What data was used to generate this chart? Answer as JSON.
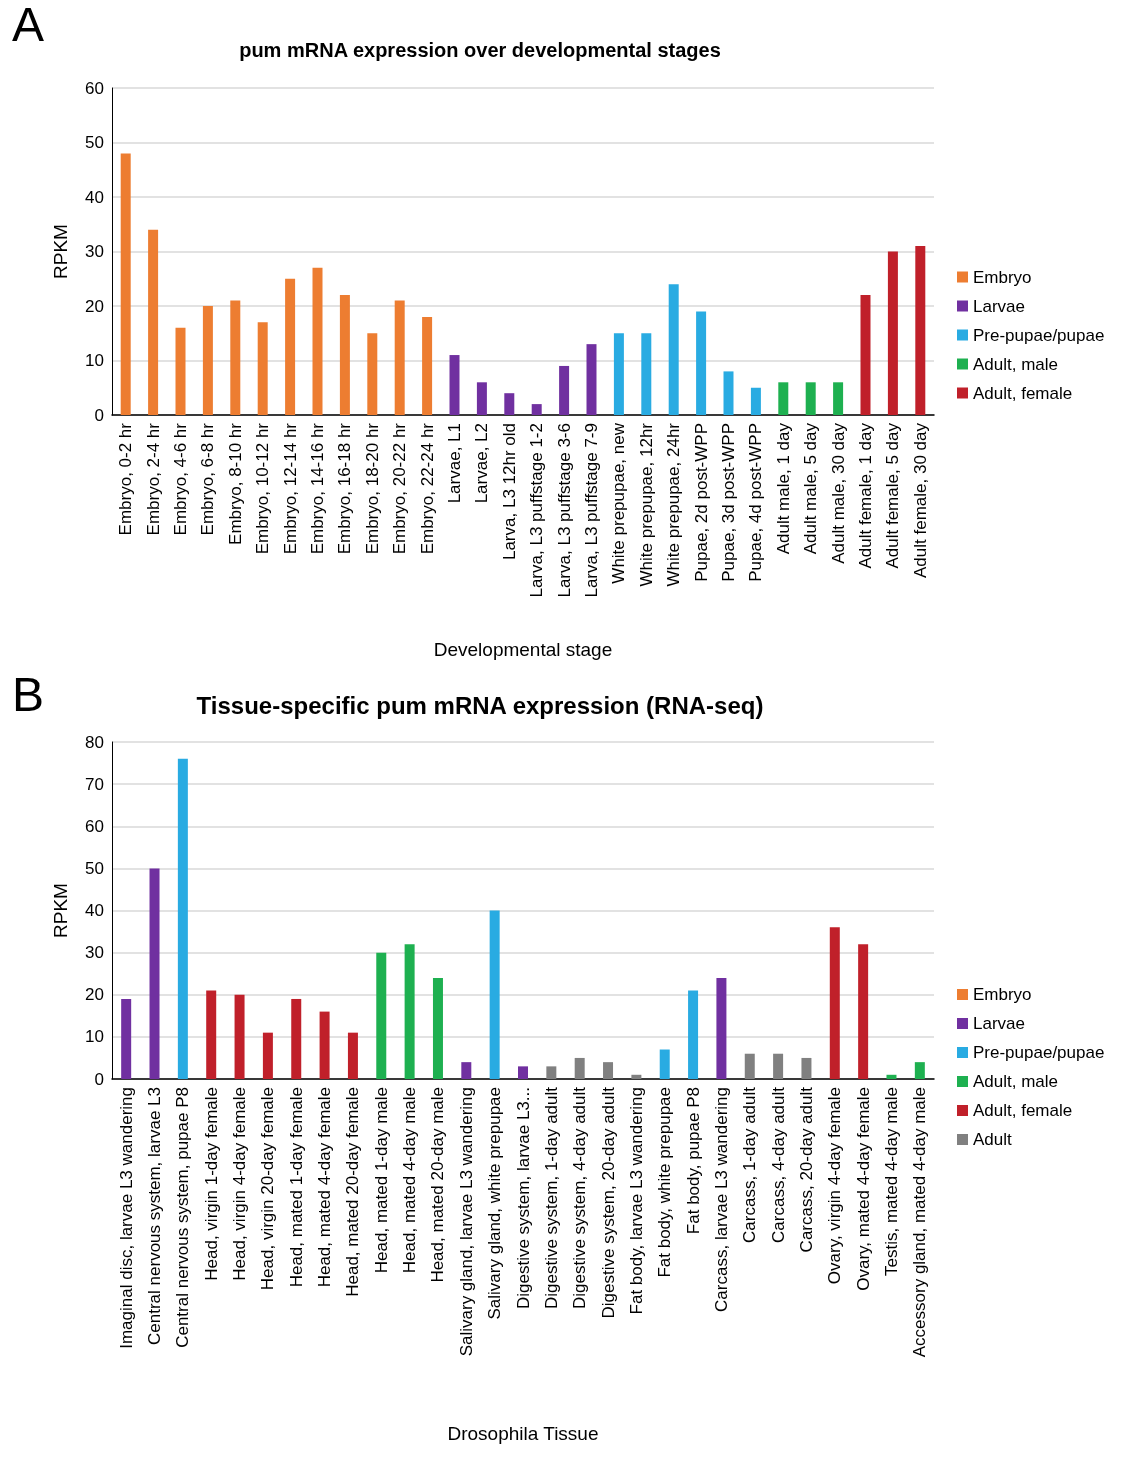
{
  "chart_data": [
    {
      "type": "bar",
      "title": "pum mRNA expression over developmental stages",
      "xlabel": "Developmental stage",
      "ylabel": "RPKM",
      "annotations": [
        "A"
      ],
      "categories": [
        "Embryo, 0-2 hr",
        "Embryo, 2-4 hr",
        "Embryo, 4-6 hr",
        "Embryo, 6-8 hr",
        "Embryo, 8-10 hr",
        "Embryo, 10-12 hr",
        "Embryo, 12-14 hr",
        "Embryo, 14-16 hr",
        "Embryo, 16-18 hr",
        "Embryo, 18-20 hr",
        "Embryo, 20-22 hr",
        "Embryo, 22-24 hr",
        "Larvae, L1",
        "Larvae, L2",
        "Larva, L3 12hr old",
        "Larva, L3 puffstage 1-2",
        "Larva, L3 puffstage 3-6",
        "Larva, L3 puffstage 7-9",
        "White prepupae, new",
        "White prepupae, 12hr",
        "White prepupae, 24hr",
        "Pupae, 2d post-WPP",
        "Pupae, 3d post-WPP",
        "Pupae, 4d post-WPP",
        "Adult male, 1 day",
        "Adult male, 5 day",
        "Adult male, 30 day",
        "Adult female, 1 day",
        "Adult female, 5 day",
        "Adult female, 30 day"
      ],
      "series": [
        {
          "name": "Embryo",
          "color": "#ed7d31",
          "values": [
            48,
            34,
            16,
            20,
            21,
            17,
            25,
            27,
            22,
            15,
            21,
            18,
            null,
            null,
            null,
            null,
            null,
            null,
            null,
            null,
            null,
            null,
            null,
            null,
            null,
            null,
            null,
            null,
            null,
            null
          ]
        },
        {
          "name": "Larvae",
          "color": "#7030a0",
          "values": [
            null,
            null,
            null,
            null,
            null,
            null,
            null,
            null,
            null,
            null,
            null,
            null,
            11,
            6,
            4,
            2,
            9,
            13,
            null,
            null,
            null,
            null,
            null,
            null,
            null,
            null,
            null,
            null,
            null,
            null
          ]
        },
        {
          "name": "Pre-pupae/pupae",
          "color": "#29abe2",
          "values": [
            null,
            null,
            null,
            null,
            null,
            null,
            null,
            null,
            null,
            null,
            null,
            null,
            null,
            null,
            null,
            null,
            null,
            null,
            15,
            15,
            24,
            19,
            8,
            5,
            null,
            null,
            null,
            null,
            null,
            null
          ]
        },
        {
          "name": "Adult, male",
          "color": "#1eb050",
          "values": [
            null,
            null,
            null,
            null,
            null,
            null,
            null,
            null,
            null,
            null,
            null,
            null,
            null,
            null,
            null,
            null,
            null,
            null,
            null,
            null,
            null,
            null,
            null,
            null,
            6,
            6,
            6,
            null,
            null,
            null
          ]
        },
        {
          "name": "Adult, female",
          "color": "#c0202a",
          "values": [
            null,
            null,
            null,
            null,
            null,
            null,
            null,
            null,
            null,
            null,
            null,
            null,
            null,
            null,
            null,
            null,
            null,
            null,
            null,
            null,
            null,
            null,
            null,
            null,
            null,
            null,
            null,
            22,
            30,
            31
          ]
        }
      ],
      "stacked": true,
      "ylim": [
        0,
        60
      ],
      "yticks": [
        0,
        10,
        20,
        30,
        40,
        50,
        60
      ],
      "grid": "y",
      "legend": "right"
    },
    {
      "type": "bar",
      "title": "Tissue-specific pum mRNA expression (RNA-seq)",
      "xlabel": "Drosophila Tissue",
      "ylabel": "RPKM",
      "annotations": [
        "B"
      ],
      "categories": [
        "Imaginal disc, larvae L3 wandering",
        "Central nervous system, larvae L3",
        "Central nervous system, pupae P8",
        "Head, virgin 1-day female",
        "Head, virgin 4-day female",
        "Head, virgin 20-day female",
        "Head, mated 1-day female",
        "Head, mated 4-day female",
        "Head, mated 20-day female",
        "Head, mated 1-day male",
        "Head, mated 4-day male",
        "Head, mated 20-day male",
        "Salivary gland, larvae L3 wandering",
        "Salivary gland, white prepupae",
        "Digestive system, larvae L3...",
        "Digestive system, 1-day adult",
        "Digestive system, 4-day adult",
        "Digestive system, 20-day adult",
        "Fat body, larvae L3 wandering",
        "Fat body, white prepupae",
        "Fat body, pupae P8",
        "Carcass, larvae L3 wandering",
        "Carcass, 1-day adult",
        "Carcass, 4-day adult",
        "Carcass, 20-day adult",
        "Ovary, virgin 4-day female",
        "Ovary, mated 4-day female",
        "Testis, mated 4-day male",
        "Accessory gland, mated 4-day male"
      ],
      "series": [
        {
          "name": "Embryo",
          "color": "#ed7d31",
          "values": [
            null,
            null,
            null,
            null,
            null,
            null,
            null,
            null,
            null,
            null,
            null,
            null,
            null,
            null,
            null,
            null,
            null,
            null,
            null,
            null,
            null,
            null,
            null,
            null,
            null,
            null,
            null,
            null,
            null
          ]
        },
        {
          "name": "Larvae",
          "color": "#7030a0",
          "values": [
            19,
            50,
            null,
            null,
            null,
            null,
            null,
            null,
            null,
            null,
            null,
            null,
            4,
            null,
            3,
            null,
            null,
            null,
            null,
            null,
            null,
            24,
            null,
            null,
            null,
            null,
            null,
            null,
            null
          ]
        },
        {
          "name": "Pre-pupae/pupae",
          "color": "#29abe2",
          "values": [
            null,
            null,
            76,
            null,
            null,
            null,
            null,
            null,
            null,
            null,
            null,
            null,
            null,
            40,
            null,
            null,
            null,
            null,
            null,
            7,
            21,
            null,
            null,
            null,
            null,
            null,
            null,
            null,
            null
          ]
        },
        {
          "name": "Adult, male",
          "color": "#1eb050",
          "values": [
            null,
            null,
            null,
            null,
            null,
            null,
            null,
            null,
            null,
            30,
            32,
            24,
            null,
            null,
            null,
            null,
            null,
            null,
            null,
            null,
            null,
            null,
            null,
            null,
            null,
            null,
            null,
            1,
            4
          ]
        },
        {
          "name": "Adult, female",
          "color": "#c0202a",
          "values": [
            null,
            null,
            null,
            21,
            20,
            11,
            19,
            16,
            11,
            null,
            null,
            null,
            null,
            null,
            null,
            null,
            null,
            null,
            null,
            null,
            null,
            null,
            null,
            null,
            null,
            36,
            32,
            null,
            null
          ]
        },
        {
          "name": "Adult",
          "color": "#808080",
          "values": [
            null,
            null,
            null,
            null,
            null,
            null,
            null,
            null,
            null,
            null,
            null,
            null,
            null,
            null,
            null,
            3,
            5,
            4,
            1,
            null,
            null,
            null,
            6,
            6,
            5,
            null,
            null,
            null,
            null
          ]
        }
      ],
      "stacked": true,
      "ylim": [
        0,
        80
      ],
      "yticks": [
        0,
        10,
        20,
        30,
        40,
        50,
        60,
        70,
        80
      ],
      "grid": "y",
      "legend": "right"
    }
  ]
}
